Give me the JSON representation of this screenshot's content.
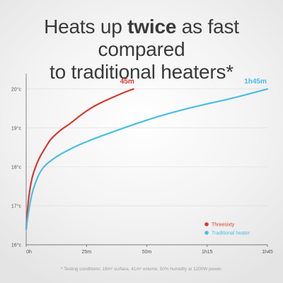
{
  "headline": {
    "before": "Heats up ",
    "emphasis": "twice",
    "after_line1": " as fast compared",
    "line2": "to traditional heaters*"
  },
  "footnote": "* Testing conditions: 18m² surface, 41m³ volume, 50% humidity at 1200W power.",
  "colors": {
    "threesixty": "#d63a32",
    "traditional": "#4bbde6",
    "axis": "#555555",
    "grid": "#dcdcdc",
    "tick_text": "#555555"
  },
  "chart_data": {
    "type": "line",
    "title": "Heats up twice as fast compared to traditional heaters*",
    "xlabel": "",
    "ylabel": "",
    "x_ticks": [
      {
        "value": 0,
        "label": "0h"
      },
      {
        "value": 25,
        "label": "25m"
      },
      {
        "value": 50,
        "label": "50m"
      },
      {
        "value": 75,
        "label": "1h15"
      },
      {
        "value": 100,
        "label": "1h45"
      }
    ],
    "x_tick_note": "last tick label reads 1h45 although spaced evenly with the others",
    "y_ticks": [
      {
        "value": 16,
        "label": "16°c"
      },
      {
        "value": 17,
        "label": "17°c"
      },
      {
        "value": 18,
        "label": "18°c"
      },
      {
        "value": 19,
        "label": "19°c"
      },
      {
        "value": 20,
        "label": "20°c"
      }
    ],
    "xlim": [
      0,
      100
    ],
    "ylim": [
      16,
      20.25
    ],
    "grid": true,
    "legend_position": "bottom-right",
    "series": [
      {
        "name": "Threesixty",
        "end_label": "45m",
        "x": [
          0,
          0.4,
          1,
          2,
          3,
          4.5,
          6,
          8,
          10,
          12.5,
          15,
          18,
          22,
          26,
          30,
          35,
          40,
          44.5
        ],
        "y": [
          16.4,
          16.8,
          17.2,
          17.6,
          17.85,
          18.1,
          18.3,
          18.5,
          18.7,
          18.85,
          18.98,
          19.1,
          19.3,
          19.48,
          19.62,
          19.76,
          19.9,
          20.0
        ]
      },
      {
        "name": "Traditional heater",
        "end_label": "1h45m",
        "x": [
          0,
          0.5,
          1,
          2,
          3,
          4.5,
          6,
          8,
          10,
          13,
          17,
          22,
          28,
          35,
          45,
          55,
          65,
          75,
          85,
          100
        ],
        "y": [
          16.4,
          16.65,
          16.85,
          17.2,
          17.45,
          17.7,
          17.9,
          18.05,
          18.15,
          18.28,
          18.42,
          18.57,
          18.72,
          18.88,
          19.1,
          19.3,
          19.47,
          19.62,
          19.75,
          20.0
        ]
      }
    ]
  }
}
